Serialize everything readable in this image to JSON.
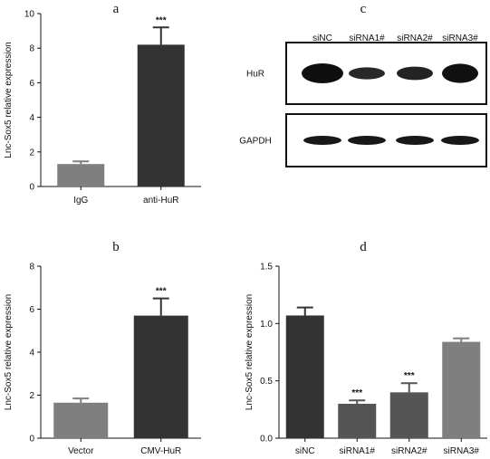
{
  "panels": {
    "a": "a",
    "b": "b",
    "c": "c",
    "d": "d"
  },
  "western_blot": {
    "lanes": [
      "siNC",
      "siRNA1#",
      "siRNA2#",
      "siRNA3#"
    ],
    "rows": [
      {
        "label": "HuR",
        "band_intensity": [
          1.0,
          0.45,
          0.55,
          0.95
        ]
      },
      {
        "label": "GAPDH",
        "band_intensity": [
          0.8,
          0.8,
          0.8,
          0.8
        ]
      }
    ]
  },
  "chart_data": [
    {
      "id": "a",
      "type": "bar",
      "categories": [
        "IgG",
        "anti-HuR"
      ],
      "values": [
        1.3,
        8.2
      ],
      "errors": [
        0.15,
        1.0
      ],
      "colors": [
        "#7f7f7f",
        "#333333"
      ],
      "significance": [
        "",
        "***"
      ],
      "ylabel": "Lnc-Sox5 relative expression",
      "ylim": [
        0,
        10
      ],
      "yticks": [
        "0",
        "2",
        "4",
        "6",
        "8",
        "10"
      ],
      "ytick_values": [
        0,
        2,
        4,
        6,
        8,
        10
      ]
    },
    {
      "id": "b",
      "type": "bar",
      "categories": [
        "Vector",
        "CMV-HuR"
      ],
      "values": [
        1.65,
        5.7
      ],
      "errors": [
        0.2,
        0.8
      ],
      "colors": [
        "#7f7f7f",
        "#333333"
      ],
      "significance": [
        "",
        "***"
      ],
      "ylabel": "Lnc-Sox5 relative expression",
      "ylim": [
        0,
        8
      ],
      "yticks": [
        "0",
        "2",
        "4",
        "6",
        "8"
      ],
      "ytick_values": [
        0,
        2,
        4,
        6,
        8
      ]
    },
    {
      "id": "d",
      "type": "bar",
      "categories": [
        "siNC",
        "siRNA1#",
        "siRNA2#",
        "siRNA3#"
      ],
      "values": [
        1.07,
        0.3,
        0.4,
        0.84
      ],
      "errors": [
        0.07,
        0.03,
        0.08,
        0.03
      ],
      "colors": [
        "#333333",
        "#555555",
        "#555555",
        "#7f7f7f"
      ],
      "significance": [
        "",
        "***",
        "***",
        ""
      ],
      "ylabel": "Lnc-Sox5 relative expression",
      "ylim": [
        0,
        1.5
      ],
      "yticks": [
        "0.0",
        "0.5",
        "1.0",
        "1.5"
      ],
      "ytick_values": [
        0,
        0.5,
        1.0,
        1.5
      ]
    }
  ]
}
